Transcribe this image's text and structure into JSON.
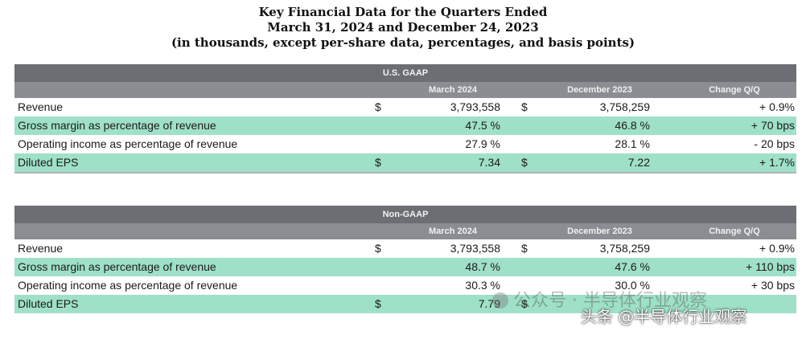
{
  "title": {
    "line1": "Key Financial Data for the Quarters Ended",
    "line2": "March 31, 2024 and December 24, 2023",
    "line3": "(in thousands, except per-share data, percentages, and basis points)"
  },
  "us_gaap": {
    "section_label": "U.S. GAAP",
    "col_current": "March 2024",
    "col_prior": "December 2023",
    "col_change": "Change Q/Q",
    "rows": [
      {
        "label": "Revenue",
        "cur_dollar": "$",
        "current": "3,793,558",
        "prior_dollar": "$",
        "prior": "3,758,259",
        "change": "+ 0.9%"
      },
      {
        "label": "Gross margin as percentage of revenue",
        "cur_dollar": "",
        "current": "47.5 %",
        "prior_dollar": "",
        "prior": "46.8 %",
        "change": "+ 70 bps"
      },
      {
        "label": "Operating income as percentage of revenue",
        "cur_dollar": "",
        "current": "27.9 %",
        "prior_dollar": "",
        "prior": "28.1 %",
        "change": "- 20 bps"
      },
      {
        "label": "Diluted EPS",
        "cur_dollar": "$",
        "current": "7.34",
        "prior_dollar": "$",
        "prior": "7.22",
        "change": "+ 1.7%"
      }
    ]
  },
  "non_gaap": {
    "section_label": "Non-GAAP",
    "col_current": "March 2024",
    "col_prior": "December 2023",
    "col_change": "Change Q/Q",
    "rows": [
      {
        "label": "Revenue",
        "cur_dollar": "$",
        "current": "3,793,558",
        "prior_dollar": "$",
        "prior": "3,758,259",
        "change": "+ 0.9%"
      },
      {
        "label": "Gross margin as percentage of revenue",
        "cur_dollar": "",
        "current": "48.7 %",
        "prior_dollar": "",
        "prior": "47.6 %",
        "change": "+ 110 bps"
      },
      {
        "label": "Operating income as percentage of revenue",
        "cur_dollar": "",
        "current": "30.3 %",
        "prior_dollar": "",
        "prior": "30.0 %",
        "change": "+ 30 bps"
      },
      {
        "label": "Diluted EPS",
        "cur_dollar": "$",
        "current": "7.79",
        "prior_dollar": "$",
        "prior": "",
        "change": ""
      }
    ]
  },
  "watermark": {
    "line1": "公众号 · 半导体行业观察",
    "line2": "头条 @半导体行业观察"
  },
  "colors": {
    "section_header": "#6b6f73",
    "column_header": "#8a8e92",
    "highlight_row": "#9fe0c8"
  }
}
